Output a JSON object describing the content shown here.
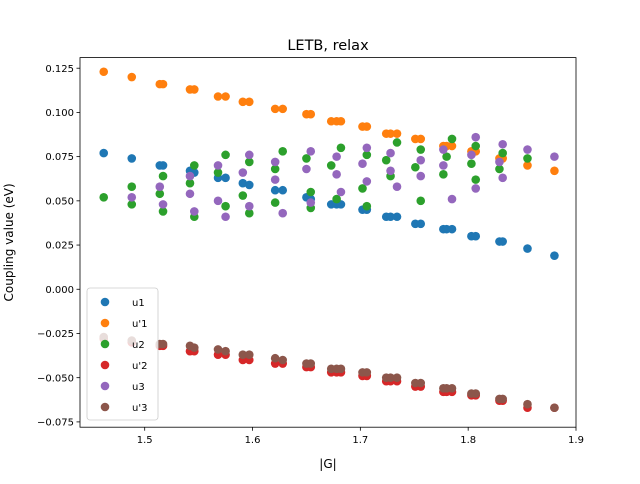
{
  "chart_data": {
    "type": "scatter",
    "title": "LETB, relax",
    "xlabel": "|G|",
    "ylabel": "Coupling value (eV)",
    "xlim": [
      1.44,
      1.9
    ],
    "ylim": [
      -0.078,
      0.131
    ],
    "xticks": [
      1.5,
      1.6,
      1.7,
      1.8,
      1.9
    ],
    "xtick_labels": [
      "1.5",
      "1.6",
      "1.7",
      "1.8",
      "1.9"
    ],
    "yticks": [
      -0.075,
      -0.05,
      -0.025,
      0.0,
      0.025,
      0.05,
      0.075,
      0.1,
      0.125
    ],
    "ytick_labels": [
      "−0.075",
      "−0.050",
      "−0.025",
      "0.000",
      "0.025",
      "0.050",
      "0.075",
      "0.100",
      "0.125"
    ],
    "legend_position": "lower-left",
    "series": [
      {
        "name": "u1",
        "color": "#1f77b4",
        "points": [
          [
            1.462,
            0.077
          ],
          [
            1.488,
            0.074
          ],
          [
            1.514,
            0.07
          ],
          [
            1.517,
            0.07
          ],
          [
            1.542,
            0.067
          ],
          [
            1.546,
            0.066
          ],
          [
            1.568,
            0.063
          ],
          [
            1.575,
            0.063
          ],
          [
            1.591,
            0.06
          ],
          [
            1.597,
            0.059
          ],
          [
            1.621,
            0.056
          ],
          [
            1.628,
            0.056
          ],
          [
            1.65,
            0.052
          ],
          [
            1.654,
            0.051
          ],
          [
            1.673,
            0.048
          ],
          [
            1.678,
            0.048
          ],
          [
            1.682,
            0.048
          ],
          [
            1.702,
            0.045
          ],
          [
            1.706,
            0.045
          ],
          [
            1.724,
            0.041
          ],
          [
            1.728,
            0.041
          ],
          [
            1.734,
            0.041
          ],
          [
            1.751,
            0.037
          ],
          [
            1.756,
            0.037
          ],
          [
            1.777,
            0.034
          ],
          [
            1.78,
            0.034
          ],
          [
            1.785,
            0.034
          ],
          [
            1.803,
            0.03
          ],
          [
            1.807,
            0.03
          ],
          [
            1.829,
            0.027
          ],
          [
            1.832,
            0.027
          ],
          [
            1.855,
            0.023
          ],
          [
            1.88,
            0.019
          ]
        ]
      },
      {
        "name": "u'1",
        "color": "#ff7f0e",
        "points": [
          [
            1.462,
            0.123
          ],
          [
            1.488,
            0.12
          ],
          [
            1.514,
            0.116
          ],
          [
            1.517,
            0.116
          ],
          [
            1.542,
            0.113
          ],
          [
            1.546,
            0.113
          ],
          [
            1.568,
            0.109
          ],
          [
            1.575,
            0.109
          ],
          [
            1.591,
            0.106
          ],
          [
            1.597,
            0.106
          ],
          [
            1.621,
            0.102
          ],
          [
            1.628,
            0.102
          ],
          [
            1.65,
            0.099
          ],
          [
            1.654,
            0.099
          ],
          [
            1.673,
            0.095
          ],
          [
            1.678,
            0.095
          ],
          [
            1.682,
            0.095
          ],
          [
            1.702,
            0.092
          ],
          [
            1.706,
            0.092
          ],
          [
            1.724,
            0.088
          ],
          [
            1.728,
            0.088
          ],
          [
            1.734,
            0.088
          ],
          [
            1.751,
            0.085
          ],
          [
            1.756,
            0.085
          ],
          [
            1.777,
            0.081
          ],
          [
            1.78,
            0.081
          ],
          [
            1.785,
            0.081
          ],
          [
            1.803,
            0.078
          ],
          [
            1.807,
            0.078
          ],
          [
            1.829,
            0.074
          ],
          [
            1.832,
            0.074
          ],
          [
            1.855,
            0.07
          ],
          [
            1.88,
            0.067
          ]
        ]
      },
      {
        "name": "u2",
        "color": "#2ca02c",
        "points": [
          [
            1.462,
            0.052
          ],
          [
            1.488,
            0.058
          ],
          [
            1.488,
            0.048
          ],
          [
            1.514,
            0.054
          ],
          [
            1.517,
            0.064
          ],
          [
            1.517,
            0.044
          ],
          [
            1.542,
            0.06
          ],
          [
            1.546,
            0.07
          ],
          [
            1.546,
            0.041
          ],
          [
            1.568,
            0.066
          ],
          [
            1.575,
            0.076
          ],
          [
            1.575,
            0.047
          ],
          [
            1.591,
            0.053
          ],
          [
            1.597,
            0.072
          ],
          [
            1.597,
            0.043
          ],
          [
            1.621,
            0.068
          ],
          [
            1.621,
            0.049
          ],
          [
            1.628,
            0.078
          ],
          [
            1.65,
            0.074
          ],
          [
            1.654,
            0.055
          ],
          [
            1.654,
            0.046
          ],
          [
            1.673,
            0.07
          ],
          [
            1.678,
            0.051
          ],
          [
            1.682,
            0.08
          ],
          [
            1.702,
            0.057
          ],
          [
            1.706,
            0.076
          ],
          [
            1.706,
            0.047
          ],
          [
            1.724,
            0.073
          ],
          [
            1.728,
            0.064
          ],
          [
            1.734,
            0.083
          ],
          [
            1.751,
            0.069
          ],
          [
            1.756,
            0.079
          ],
          [
            1.756,
            0.05
          ],
          [
            1.777,
            0.065
          ],
          [
            1.78,
            0.075
          ],
          [
            1.785,
            0.085
          ],
          [
            1.803,
            0.071
          ],
          [
            1.807,
            0.081
          ],
          [
            1.807,
            0.062
          ],
          [
            1.829,
            0.068
          ],
          [
            1.832,
            0.077
          ],
          [
            1.855,
            0.074
          ]
        ]
      },
      {
        "name": "u'2",
        "color": "#d62728",
        "points": [
          [
            1.462,
            -0.028
          ],
          [
            1.488,
            -0.03
          ],
          [
            1.514,
            -0.032
          ],
          [
            1.517,
            -0.032
          ],
          [
            1.542,
            -0.035
          ],
          [
            1.546,
            -0.035
          ],
          [
            1.568,
            -0.037
          ],
          [
            1.575,
            -0.037
          ],
          [
            1.591,
            -0.04
          ],
          [
            1.597,
            -0.04
          ],
          [
            1.621,
            -0.042
          ],
          [
            1.628,
            -0.042
          ],
          [
            1.65,
            -0.044
          ],
          [
            1.654,
            -0.044
          ],
          [
            1.673,
            -0.047
          ],
          [
            1.678,
            -0.047
          ],
          [
            1.682,
            -0.047
          ],
          [
            1.702,
            -0.049
          ],
          [
            1.706,
            -0.049
          ],
          [
            1.724,
            -0.052
          ],
          [
            1.728,
            -0.052
          ],
          [
            1.734,
            -0.052
          ],
          [
            1.751,
            -0.055
          ],
          [
            1.756,
            -0.055
          ],
          [
            1.777,
            -0.058
          ],
          [
            1.78,
            -0.058
          ],
          [
            1.785,
            -0.058
          ],
          [
            1.803,
            -0.06
          ],
          [
            1.807,
            -0.06
          ],
          [
            1.829,
            -0.063
          ],
          [
            1.832,
            -0.063
          ],
          [
            1.855,
            -0.067
          ],
          [
            1.88,
            -0.067
          ]
        ]
      },
      {
        "name": "u3",
        "color": "#9467bd",
        "points": [
          [
            1.488,
            0.052
          ],
          [
            1.514,
            0.058
          ],
          [
            1.517,
            0.048
          ],
          [
            1.542,
            0.064
          ],
          [
            1.542,
            0.054
          ],
          [
            1.546,
            0.044
          ],
          [
            1.568,
            0.07
          ],
          [
            1.568,
            0.05
          ],
          [
            1.575,
            0.041
          ],
          [
            1.591,
            0.066
          ],
          [
            1.597,
            0.076
          ],
          [
            1.597,
            0.047
          ],
          [
            1.621,
            0.072
          ],
          [
            1.621,
            0.062
          ],
          [
            1.628,
            0.043
          ],
          [
            1.65,
            0.068
          ],
          [
            1.654,
            0.078
          ],
          [
            1.654,
            0.049
          ],
          [
            1.678,
            0.075
          ],
          [
            1.678,
            0.065
          ],
          [
            1.682,
            0.055
          ],
          [
            1.702,
            0.071
          ],
          [
            1.706,
            0.08
          ],
          [
            1.706,
            0.061
          ],
          [
            1.728,
            0.077
          ],
          [
            1.728,
            0.067
          ],
          [
            1.734,
            0.058
          ],
          [
            1.756,
            0.073
          ],
          [
            1.756,
            0.064
          ],
          [
            1.777,
            0.079
          ],
          [
            1.777,
            0.07
          ],
          [
            1.785,
            0.051
          ],
          [
            1.803,
            0.076
          ],
          [
            1.807,
            0.086
          ],
          [
            1.807,
            0.057
          ],
          [
            1.829,
            0.072
          ],
          [
            1.832,
            0.082
          ],
          [
            1.832,
            0.063
          ],
          [
            1.855,
            0.079
          ],
          [
            1.88,
            0.075
          ]
        ]
      },
      {
        "name": "u'3",
        "color": "#8c564b",
        "points": [
          [
            1.462,
            -0.027
          ],
          [
            1.488,
            -0.029
          ],
          [
            1.514,
            -0.031
          ],
          [
            1.517,
            -0.031
          ],
          [
            1.542,
            -0.032
          ],
          [
            1.546,
            -0.033
          ],
          [
            1.568,
            -0.034
          ],
          [
            1.575,
            -0.035
          ],
          [
            1.591,
            -0.037
          ],
          [
            1.597,
            -0.037
          ],
          [
            1.621,
            -0.039
          ],
          [
            1.628,
            -0.04
          ],
          [
            1.65,
            -0.042
          ],
          [
            1.654,
            -0.042
          ],
          [
            1.673,
            -0.045
          ],
          [
            1.678,
            -0.045
          ],
          [
            1.682,
            -0.045
          ],
          [
            1.702,
            -0.047
          ],
          [
            1.706,
            -0.047
          ],
          [
            1.724,
            -0.05
          ],
          [
            1.728,
            -0.05
          ],
          [
            1.734,
            -0.05
          ],
          [
            1.751,
            -0.053
          ],
          [
            1.756,
            -0.053
          ],
          [
            1.777,
            -0.056
          ],
          [
            1.78,
            -0.056
          ],
          [
            1.785,
            -0.056
          ],
          [
            1.803,
            -0.059
          ],
          [
            1.807,
            -0.059
          ],
          [
            1.829,
            -0.062
          ],
          [
            1.832,
            -0.062
          ],
          [
            1.855,
            -0.065
          ],
          [
            1.88,
            -0.067
          ]
        ]
      }
    ]
  }
}
